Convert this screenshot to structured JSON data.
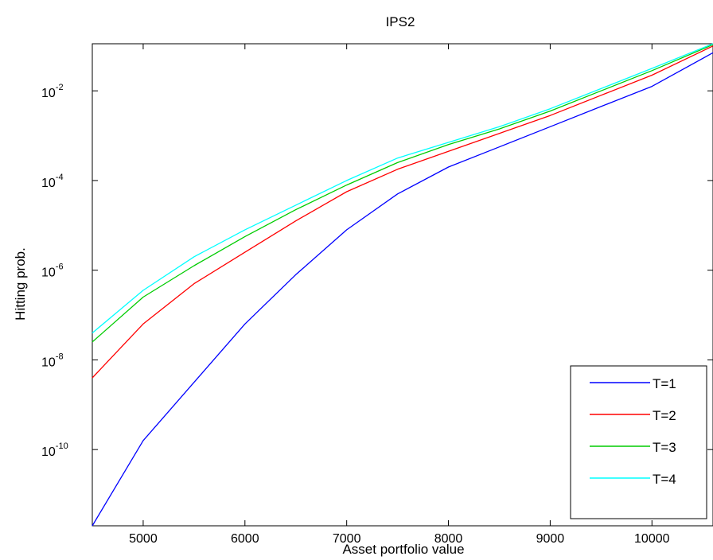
{
  "chart_data": {
    "type": "line",
    "title": "IPS2",
    "xlabel": "Asset portfolio value",
    "ylabel": "Hitting prob.",
    "xlim": [
      4500,
      10600
    ],
    "ylim_log10": [
      -11.7,
      -0.95
    ],
    "y_scale": "log",
    "grid": false,
    "legend_position": "bottom-right",
    "x_ticks": [
      5000,
      6000,
      7000,
      8000,
      9000,
      10000
    ],
    "y_ticks": [
      {
        "base": "10",
        "exp": "-2",
        "log10": -2
      },
      {
        "base": "10",
        "exp": "-4",
        "log10": -4
      },
      {
        "base": "10",
        "exp": "-6",
        "log10": -6
      },
      {
        "base": "10",
        "exp": "-8",
        "log10": -8
      },
      {
        "base": "10",
        "exp": "-10",
        "log10": -10
      }
    ],
    "x": [
      4500,
      5000,
      5500,
      6000,
      6500,
      7000,
      7500,
      8000,
      8500,
      9000,
      9500,
      10000,
      10600
    ],
    "series": [
      {
        "name": "T=1",
        "color": "#0000ff",
        "log10_values": [
          -11.7,
          -9.8,
          -8.5,
          -7.2,
          -6.1,
          -5.1,
          -4.3,
          -3.7,
          -3.25,
          -2.8,
          -2.35,
          -1.9,
          -1.15
        ]
      },
      {
        "name": "T=2",
        "color": "#ff0000",
        "log10_values": [
          -8.4,
          -7.2,
          -6.3,
          -5.6,
          -4.9,
          -4.25,
          -3.75,
          -3.35,
          -2.95,
          -2.55,
          -2.1,
          -1.65,
          -1.0
        ]
      },
      {
        "name": "T=3",
        "color": "#00cc00",
        "log10_values": [
          -7.6,
          -6.6,
          -5.9,
          -5.25,
          -4.65,
          -4.1,
          -3.6,
          -3.2,
          -2.85,
          -2.45,
          -2.0,
          -1.55,
          -0.97
        ]
      },
      {
        "name": "T=4",
        "color": "#00ffff",
        "log10_values": [
          -7.4,
          -6.45,
          -5.7,
          -5.1,
          -4.55,
          -4.0,
          -3.5,
          -3.15,
          -2.8,
          -2.4,
          -1.95,
          -1.5,
          -0.95
        ]
      }
    ]
  }
}
